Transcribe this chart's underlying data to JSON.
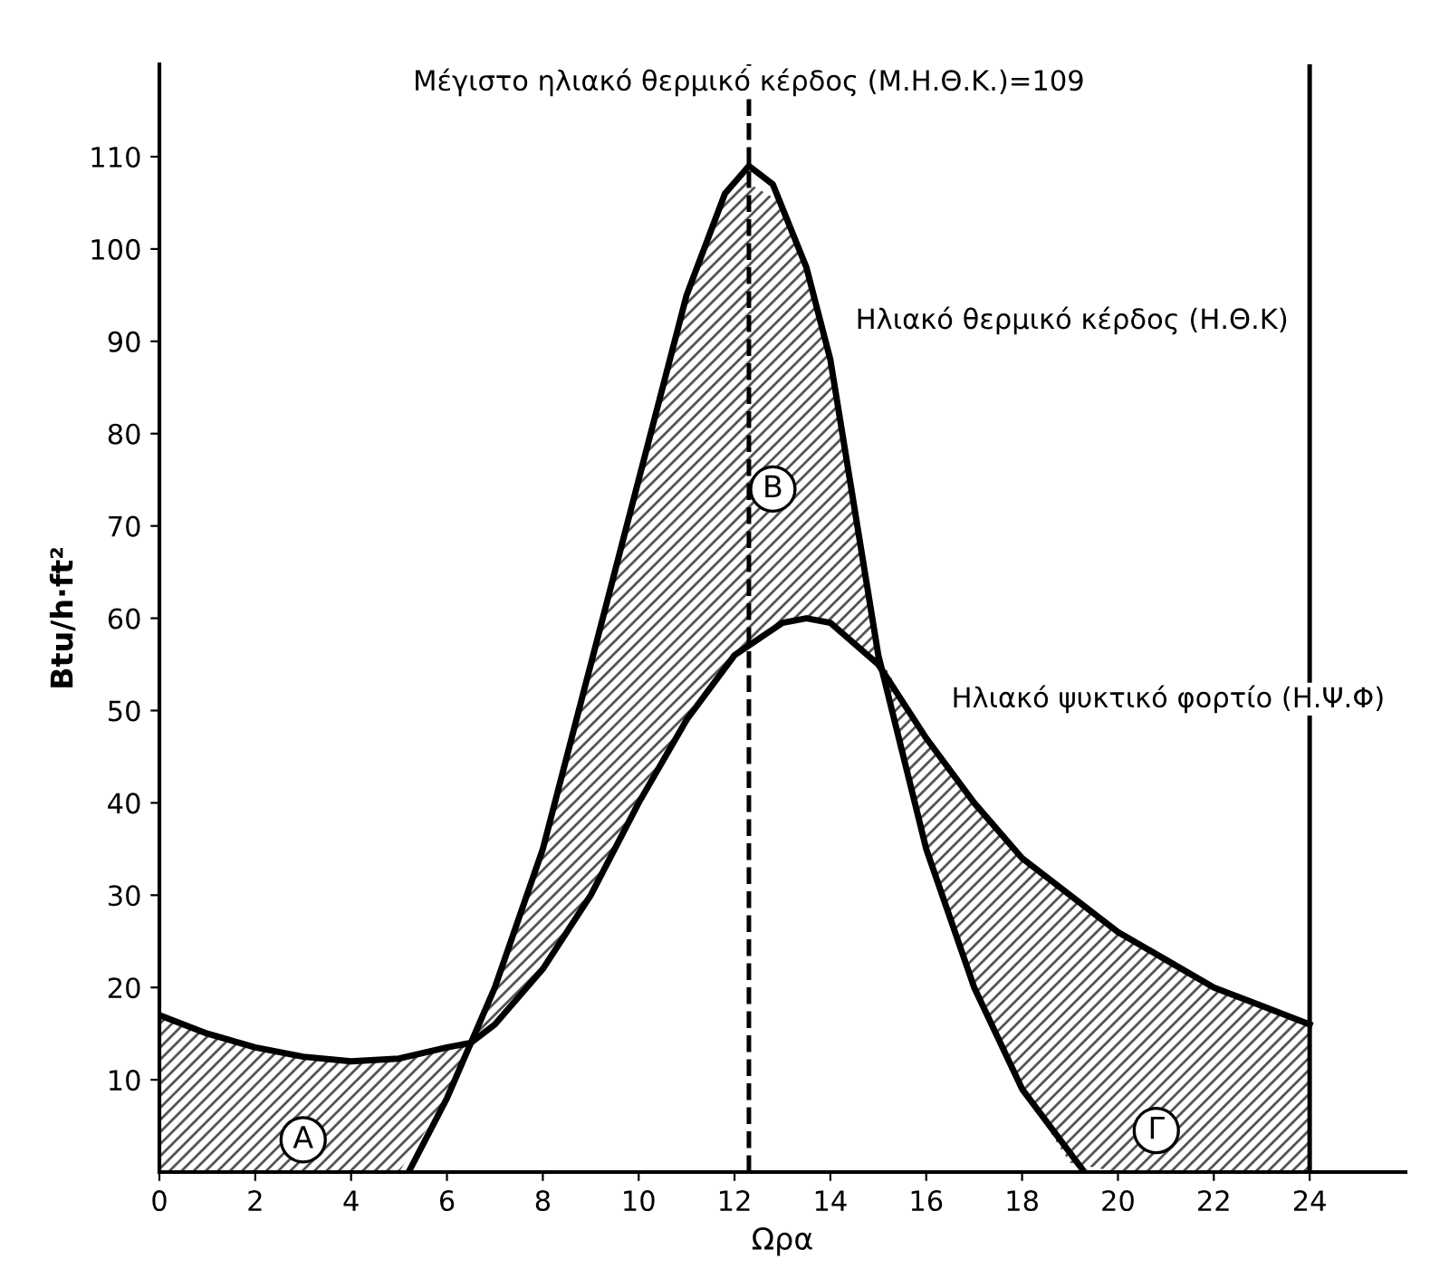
{
  "chart_data": {
    "type": "line",
    "xlabel": "Ωρα",
    "ylabel": "Btu/h·ft²",
    "xlim": [
      0,
      26
    ],
    "ylim": [
      0,
      120
    ],
    "xticks": [
      0,
      2,
      4,
      6,
      8,
      10,
      12,
      14,
      16,
      18,
      20,
      22,
      24
    ],
    "yticks": [
      10,
      20,
      30,
      40,
      50,
      60,
      70,
      80,
      90,
      100,
      110
    ],
    "grid": false,
    "legend": false,
    "marker": "none",
    "line_style": "solid",
    "series": [
      {
        "name": "Ηλιακό θερμικό κέρδος (Η.Θ.Κ)",
        "color": "#000000",
        "x": [
          5.2,
          6,
          6.5,
          7,
          8,
          9,
          10,
          11,
          11.8,
          12.3,
          12.8,
          13.5,
          14,
          15,
          16,
          17,
          18,
          19.3
        ],
        "values": [
          0,
          8,
          14,
          20,
          35,
          55,
          75,
          95,
          106,
          109,
          107,
          98,
          88,
          56,
          35,
          20,
          9,
          0
        ]
      },
      {
        "name": "Ηλιακό ψυκτικό φορτίο (Η.Ψ.Φ)",
        "color": "#000000",
        "x": [
          0,
          1,
          2,
          3,
          4,
          5,
          6,
          6.5,
          7,
          8,
          9,
          10,
          11,
          12,
          13,
          13.5,
          14,
          15,
          16,
          17,
          18,
          19,
          20,
          21,
          22,
          23,
          24
        ],
        "values": [
          17,
          15,
          13.5,
          12.5,
          12,
          12.3,
          13.5,
          14,
          16,
          22,
          30,
          40,
          49,
          56,
          59.5,
          60,
          59.5,
          55,
          47,
          40,
          34,
          30,
          26,
          23,
          20,
          18,
          16
        ],
        "lower": [
          0,
          0,
          0,
          0,
          0,
          0,
          8,
          14,
          16,
          22,
          30,
          40,
          49,
          56,
          59.5,
          60,
          59.5,
          55,
          35,
          20,
          9,
          1,
          0,
          0,
          0,
          0,
          0
        ],
        "upper": [
          17,
          15,
          13.5,
          12.5,
          12,
          12.3,
          13.5,
          14,
          20,
          35,
          55,
          75,
          95,
          108,
          105,
          98,
          88,
          56,
          47,
          40,
          34,
          30,
          26,
          23,
          20,
          18,
          16
        ]
      }
    ],
    "ref_lines": [
      {
        "axis": "x",
        "value": 12.3,
        "line_style": "dashed"
      },
      {
        "axis": "x",
        "value": 24,
        "line_style": "solid"
      }
    ],
    "annotations": [
      {
        "text": "Μέγιστο ηλιακό θερμικό κέρδος (Μ.Η.Θ.Κ.)=109",
        "x": 12.3,
        "y": 109
      },
      {
        "text": "Α",
        "x": 3,
        "y": 3.5
      },
      {
        "text": "Β",
        "x": 12.8,
        "y": 74
      },
      {
        "text": "Γ",
        "x": 20.8,
        "y": 4.5
      }
    ]
  }
}
